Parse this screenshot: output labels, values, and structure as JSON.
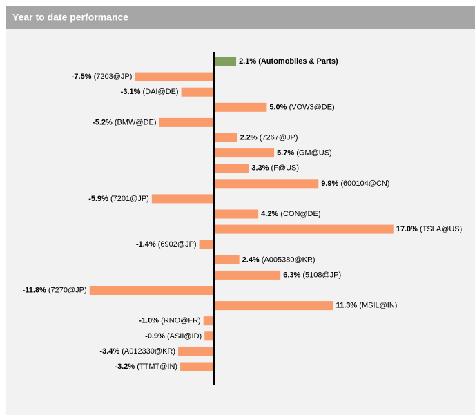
{
  "chart_data": {
    "type": "barh",
    "title": "Year to date performance",
    "categories": [
      "(Automobiles & Parts)",
      "(7203@JP)",
      "(DAI@DE)",
      "(VOW3@DE)",
      "(BMW@DE)",
      "(7267@JP)",
      "(GM@US)",
      "(F@US)",
      "(600104@CN)",
      "(7201@JP)",
      "(CON@DE)",
      "(TSLA@US)",
      "(6902@JP)",
      "(A005380@KR)",
      "(5108@JP)",
      "(7270@JP)",
      "(MSIL@IN)",
      "(RNO@FR)",
      "(ASII@ID)",
      "(A012330@KR)",
      "(TTMT@IN)"
    ],
    "values": [
      2.1,
      -7.5,
      -3.1,
      5.0,
      -5.2,
      2.2,
      5.7,
      3.3,
      9.9,
      -5.9,
      4.2,
      17.0,
      -1.4,
      2.4,
      6.3,
      -11.8,
      11.3,
      -1.0,
      -0.9,
      -3.4,
      -3.2
    ],
    "value_labels": [
      "2.1%",
      "-7.5%",
      "-3.1%",
      "5.0%",
      "-5.2%",
      "2.2%",
      "5.7%",
      "3.3%",
      "9.9%",
      "-5.9%",
      "4.2%",
      "17.0%",
      "-1.4%",
      "2.4%",
      "6.3%",
      "-11.8%",
      "11.3%",
      "-1.0%",
      "-0.9%",
      "-3.4%",
      "-3.2%"
    ],
    "color": "#f99b6b",
    "highlight": 0,
    "highlight_color": "#7fa05f",
    "xlim": [
      -12.5,
      18
    ]
  }
}
